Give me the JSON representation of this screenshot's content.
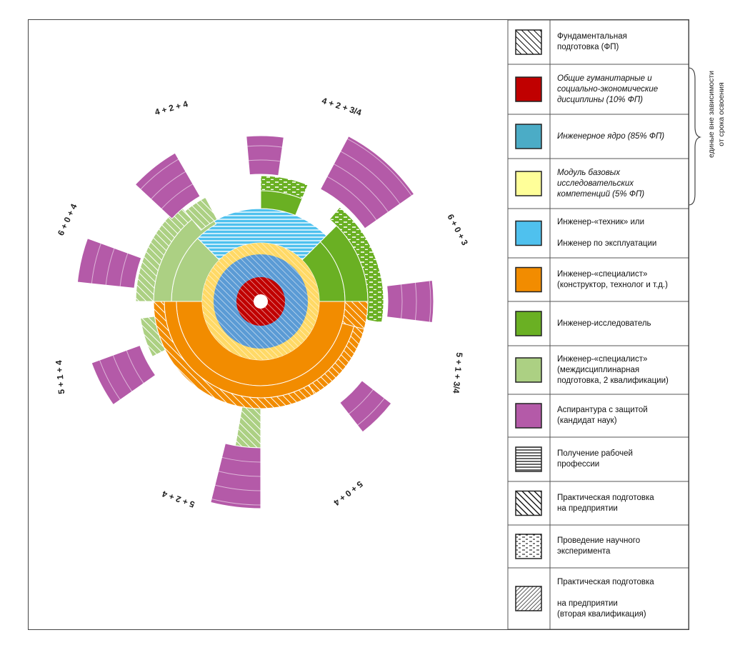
{
  "diagram": {
    "ring_labels": [
      {
        "id": "label-4-2-4",
        "text": "4 + 2 + 4"
      },
      {
        "id": "label-4-2-3-4",
        "text": "4 + 2 + 3/4"
      },
      {
        "id": "label-6-0-3",
        "text": "6 + 0 + 3"
      },
      {
        "id": "label-5-1-3-4",
        "text": "5 + 1 + 3/4"
      },
      {
        "id": "label-5-0-4",
        "text": "5 + 0 + 4"
      },
      {
        "id": "label-5-2-4",
        "text": "5 + 2 + 4"
      },
      {
        "id": "label-5-1-4",
        "text": "5 + 1 + 4"
      },
      {
        "id": "label-6-0-4",
        "text": "6 + 0 + 4"
      }
    ]
  },
  "legend": {
    "items": [
      {
        "pattern": "hatch-diag",
        "lines": [
          "Фундаментальная",
          "подготовка (ФП)"
        ],
        "italic": false
      },
      {
        "pattern": "solid",
        "color": "#c00000",
        "lines": [
          "Общие гуманитарные и",
          "социально-экономические",
          "дисциплины (10% ФП)"
        ],
        "italic": true
      },
      {
        "pattern": "solid",
        "color": "#4bacc6",
        "lines": [
          "Инженерное ядро (85% ФП)"
        ],
        "italic": true
      },
      {
        "pattern": "solid",
        "color": "#ffff99",
        "lines": [
          "Модуль базовых",
          "исследовательских",
          "компетенций (5% ФП)"
        ],
        "italic": true
      },
      {
        "pattern": "solid",
        "color": "#4fc1ee",
        "lines": [
          "Инженер-«техник» или",
          "",
          "Инженер по эксплуатации"
        ],
        "italic": false
      },
      {
        "pattern": "solid",
        "color": "#f28c00",
        "lines": [
          "Инженер-«специалист»",
          "(конструктор, технолог и т.д.)"
        ],
        "italic": false
      },
      {
        "pattern": "solid",
        "color": "#6ab023",
        "lines": [
          "Инженер-исследователь"
        ],
        "italic": false
      },
      {
        "pattern": "solid",
        "color": "#acd083",
        "lines": [
          "Инженер-«специалист»",
          "(междисциплинарная",
          "подготовка, 2 квалификации)"
        ],
        "italic": false
      },
      {
        "pattern": "solid",
        "color": "#b45aa8",
        "lines": [
          "Аспирантура с защитой",
          "(кандидат наук)"
        ],
        "italic": false
      },
      {
        "pattern": "horizontal-lines",
        "lines": [
          "Получение рабочей",
          "профессии"
        ],
        "italic": false
      },
      {
        "pattern": "hatch-diag-bold",
        "lines": [
          "Практическая подготовка",
          "на предприятии"
        ],
        "italic": false
      },
      {
        "pattern": "dashes",
        "lines": [
          "Проведение научного",
          "эксперимента"
        ],
        "italic": false
      },
      {
        "pattern": "hatch-back",
        "lines": [
          "Практическая подготовка",
          "",
          "на предприятии",
          "(вторая квалификация)"
        ],
        "italic": false
      }
    ]
  },
  "side_note": {
    "lines": [
      "единые вне зависимости",
      "от срока освоения"
    ]
  },
  "colors": {
    "red": "#c00000",
    "blue_core": "#5b9bd5",
    "yellow": "#ffd966",
    "cyan": "#4fc1ee",
    "orange": "#f28c00",
    "green": "#6ab023",
    "light_green": "#acd083",
    "purple": "#b45aa8"
  }
}
